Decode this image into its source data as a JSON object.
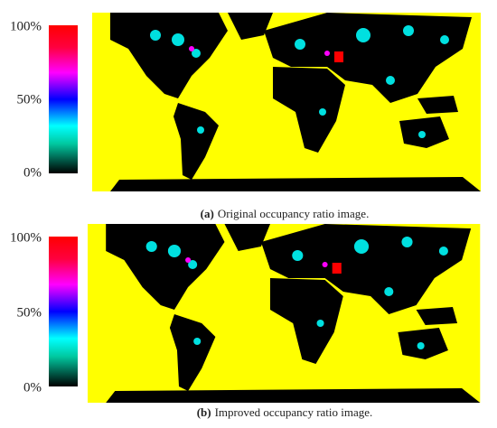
{
  "panels": [
    {
      "colorbar_ticks": [
        {
          "value": 100,
          "label": "100%"
        },
        {
          "value": 50,
          "label": "50%"
        },
        {
          "value": 0,
          "label": "0%"
        }
      ],
      "caption": {
        "label": "(a)",
        "text": "Original occupancy ratio image."
      }
    },
    {
      "colorbar_ticks": [
        {
          "value": 100,
          "label": "100%"
        },
        {
          "value": 50,
          "label": "50%"
        },
        {
          "value": 0,
          "label": "0%"
        }
      ],
      "caption": {
        "label": "(b)",
        "text": "Improved occupancy ratio image."
      }
    }
  ]
}
